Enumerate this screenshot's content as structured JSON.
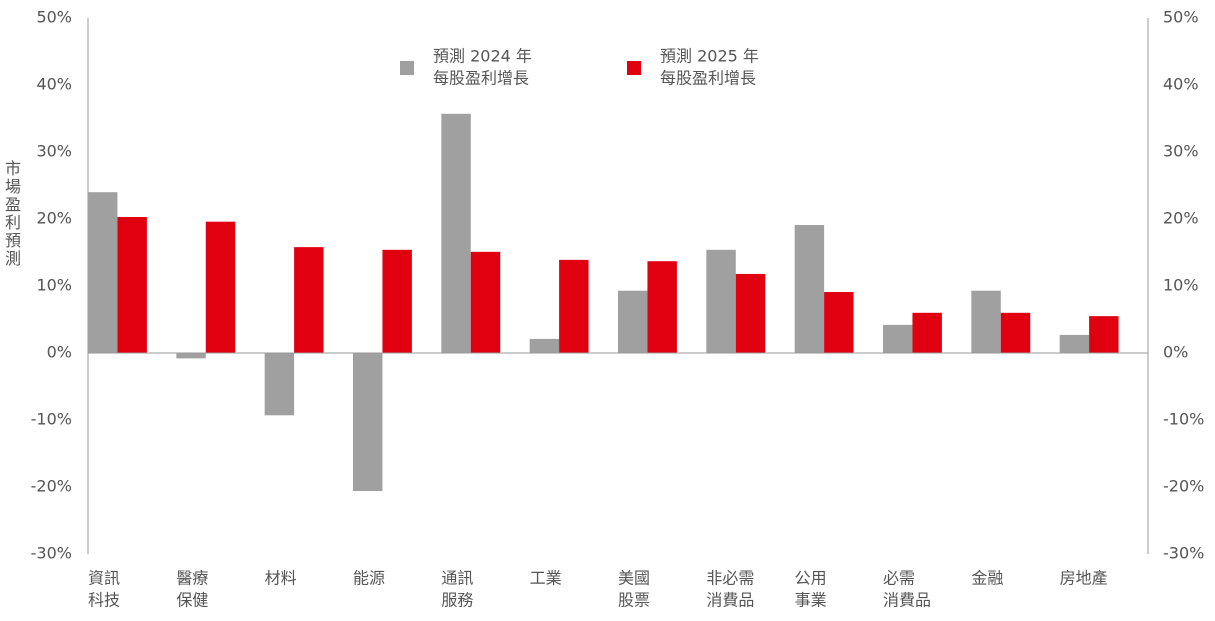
{
  "chart_data": {
    "type": "bar",
    "y_label": "市場盈利預測",
    "categories": [
      [
        "資訊",
        "科技"
      ],
      [
        "醫療",
        "保健"
      ],
      [
        "材料"
      ],
      [
        "能源"
      ],
      [
        "通訊",
        "服務"
      ],
      [
        "工業"
      ],
      [
        "美國",
        "股票"
      ],
      [
        "非必需",
        "消費品"
      ],
      [
        "公用",
        "事業"
      ],
      [
        "必需",
        "消費品"
      ],
      [
        "金融"
      ],
      [
        "房地產"
      ]
    ],
    "series": [
      {
        "name": [
          "預測 2024 年",
          "每股盈利增長"
        ],
        "color": "#a0a0a0",
        "values": [
          24.0,
          -0.8,
          -9.3,
          -20.6,
          35.7,
          2.1,
          9.3,
          15.4,
          19.1,
          4.2,
          9.3,
          2.7
        ]
      },
      {
        "name": [
          "預測 2025 年",
          "每股盈利增長"
        ],
        "color": "#e0000f",
        "values": [
          20.3,
          19.6,
          15.8,
          15.4,
          15.1,
          13.9,
          13.7,
          11.8,
          9.1,
          6.0,
          6.0,
          5.5
        ]
      }
    ],
    "ylim": [
      -30,
      50
    ],
    "yticks": [
      {
        "value": -30,
        "label": "-30%"
      },
      {
        "value": -20,
        "label": "-20%"
      },
      {
        "value": -10,
        "label": "-10%"
      },
      {
        "value": 0,
        "label": "0%"
      },
      {
        "value": 10,
        "label": "10%"
      },
      {
        "value": 20,
        "label": "20%"
      },
      {
        "value": 30,
        "label": "30%"
      },
      {
        "value": 40,
        "label": "40%"
      },
      {
        "value": 50,
        "label": "50%"
      }
    ],
    "y2lim": [
      -30,
      50
    ],
    "y2ticks": [
      {
        "value": -30,
        "label": "-30%"
      },
      {
        "value": -20,
        "label": "-20%"
      },
      {
        "value": -10,
        "label": "-10%"
      },
      {
        "value": 0,
        "label": "0%"
      },
      {
        "value": 10,
        "label": "10%"
      },
      {
        "value": 20,
        "label": "20%"
      },
      {
        "value": 30,
        "label": "30%"
      },
      {
        "value": 40,
        "label": "40%"
      },
      {
        "value": 50,
        "label": "50%"
      }
    ],
    "grid": false
  }
}
